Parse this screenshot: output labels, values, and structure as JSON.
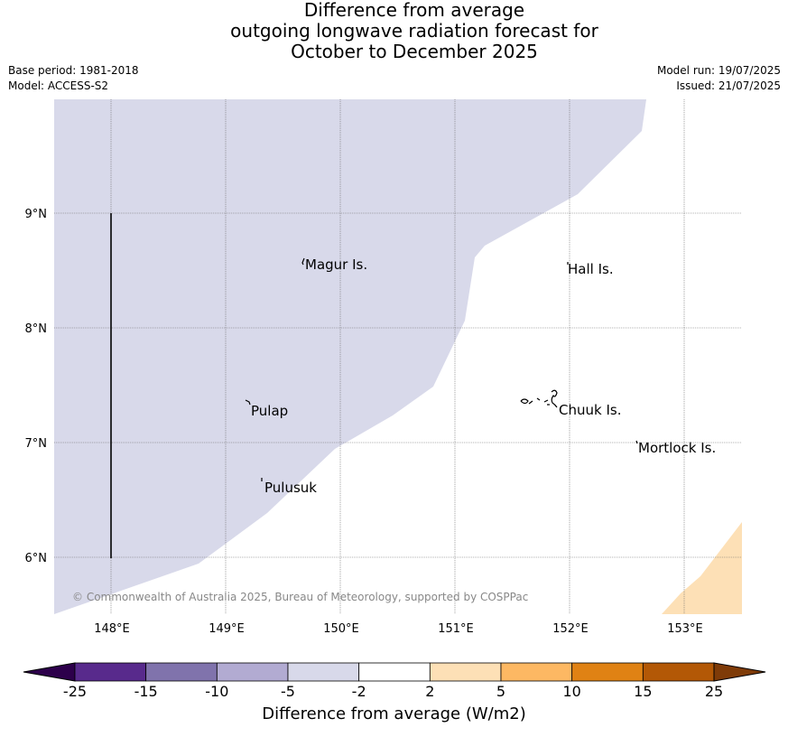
{
  "title_lines": [
    "Difference from average",
    "outgoing longwave radiation forecast for",
    "October to December 2025"
  ],
  "meta": {
    "base_period": "Base period: 1981-2018",
    "model": "Model: ACCESS-S2",
    "model_run": "Model run: 19/07/2025",
    "issued": "Issued: 21/07/2025"
  },
  "map": {
    "lon_labels": [
      "148°E",
      "149°E",
      "150°E",
      "151°E",
      "152°E",
      "153°E"
    ],
    "lat_labels": [
      "9°N",
      "8°N",
      "7°N",
      "6°N"
    ],
    "islands": [
      {
        "name": "Magur Is."
      },
      {
        "name": "Hall Is."
      },
      {
        "name": "Pulap"
      },
      {
        "name": "Chuuk Is."
      },
      {
        "name": "Mortlock Is."
      },
      {
        "name": "Pulusuk"
      }
    ],
    "copyright": "© Commonwealth of Australia 2025, Bureau of Meteorology, supported by COSPPac",
    "shaded_regions": [
      {
        "category": "-5 to -2",
        "color": "#d8d9ea"
      },
      {
        "category": "2 to 5",
        "color": "#fde0b6"
      }
    ]
  },
  "colorbar": {
    "label": "Difference from average (W/m2)",
    "ticks": [
      "-25",
      "-15",
      "-10",
      "-5",
      "-2",
      "2",
      "5",
      "10",
      "15",
      "25"
    ],
    "colors": [
      "#582a8c",
      "#8073ac",
      "#b2abd2",
      "#d8d9ea",
      "#ffffff",
      "#fde0b6",
      "#fdb863",
      "#e08214",
      "#b35806"
    ],
    "under_color": "#2d004b",
    "over_color": "#7f3b08"
  }
}
